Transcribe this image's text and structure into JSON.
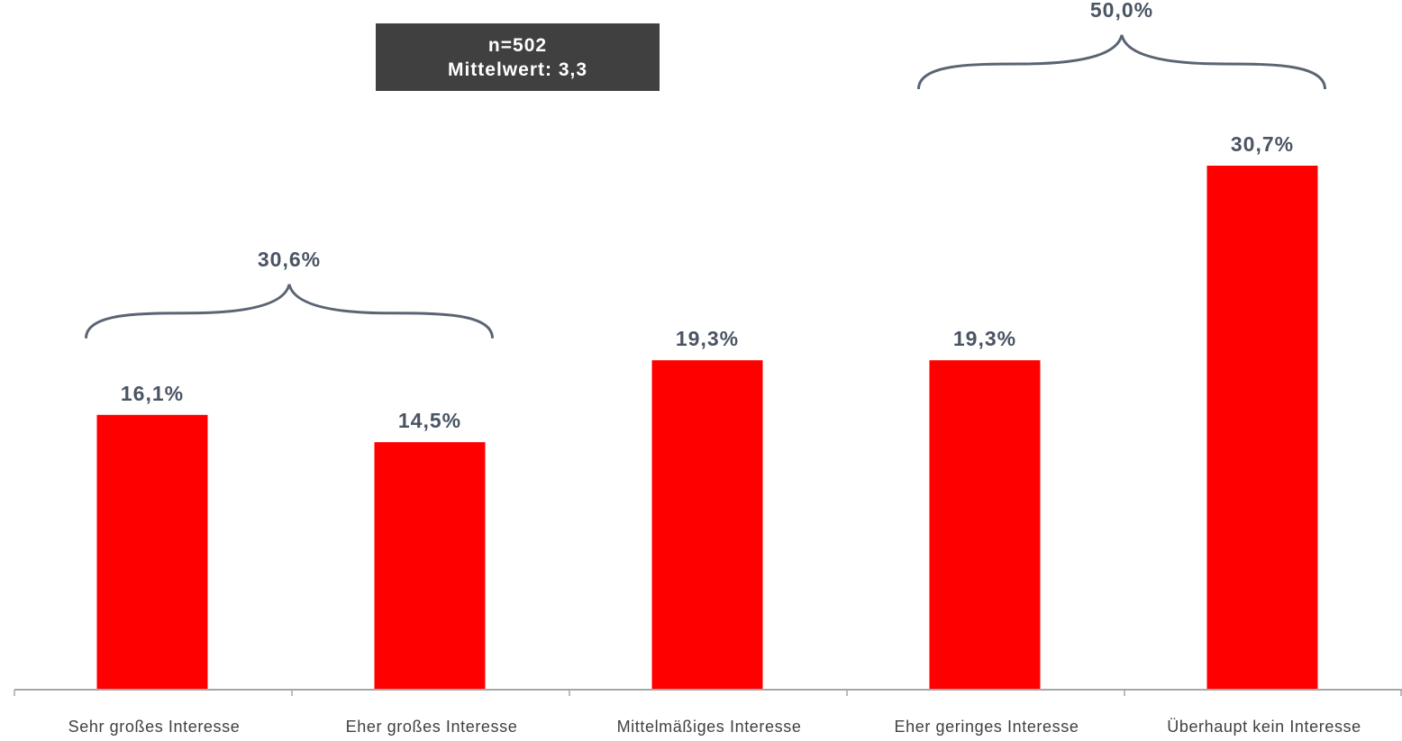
{
  "stats_box": {
    "line1": "n=502",
    "line2": "Mittelwert: 3,3"
  },
  "chart_data": {
    "type": "bar",
    "categories": [
      "Sehr großes Interesse",
      "Eher großes Interesse",
      "Mittelmäßiges Interesse",
      "Eher geringes Interesse",
      "Überhaupt kein Interesse"
    ],
    "values": [
      16.1,
      14.5,
      19.3,
      19.3,
      30.7
    ],
    "value_labels": [
      "16,1%",
      "14,5%",
      "19,3%",
      "19,3%",
      "30,7%"
    ],
    "bar_color": "#ff0000",
    "ylim": [
      0,
      30.7
    ],
    "grid": false,
    "groups": [
      {
        "categories": [
          0,
          1
        ],
        "label": "30,6%"
      },
      {
        "categories": [
          3,
          4
        ],
        "label": "50,0%"
      }
    ]
  }
}
